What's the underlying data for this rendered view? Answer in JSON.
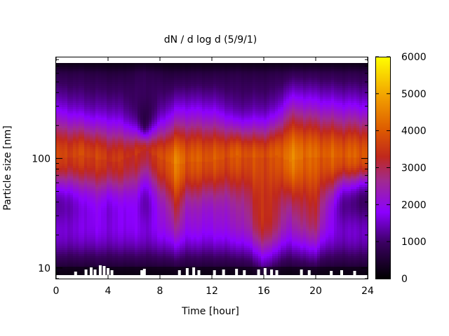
{
  "chart_data": {
    "type": "heatmap",
    "title": "dN / d log d (5/9/1)",
    "xlabel": "Time [hour]",
    "ylabel": "Particle size [nm]",
    "xlim": [
      0,
      24
    ],
    "xticks": [
      "0",
      "4",
      "8",
      "12",
      "16",
      "20",
      "24"
    ],
    "ylim": [
      8,
      850
    ],
    "y_scale": "log",
    "ymajor_ticks": [
      "10",
      "100"
    ],
    "color_scale": {
      "min": 0,
      "max": 6000,
      "ticks": [
        "0",
        "1000",
        "2000",
        "3000",
        "4000",
        "5000",
        "6000"
      ],
      "palette": "black-purple-red-orange-yellow"
    },
    "mode_profile": {
      "hours": [
        0,
        2,
        3,
        4,
        5,
        6,
        6.8,
        8,
        9.3,
        10,
        12,
        13,
        14,
        15,
        16,
        17,
        18,
        19,
        20,
        22,
        24
      ],
      "peak_diameter_nm": [
        100,
        105,
        100,
        95,
        95,
        105,
        120,
        100,
        88,
        92,
        95,
        100,
        105,
        100,
        100,
        105,
        95,
        100,
        100,
        100,
        100
      ],
      "peak_value": [
        3500,
        3600,
        3550,
        3400,
        3350,
        3300,
        3200,
        3550,
        4350,
        3900,
        3800,
        3750,
        3850,
        3750,
        3750,
        3800,
        4350,
        4200,
        4000,
        3900,
        3900
      ],
      "lower_edge_nm": [
        60,
        55,
        50,
        52,
        50,
        50,
        62,
        47,
        38,
        44,
        46,
        45,
        44,
        38,
        26,
        36,
        44,
        38,
        36,
        60,
        66
      ],
      "upper_edge_nm": [
        210,
        200,
        190,
        185,
        180,
        175,
        160,
        180,
        190,
        200,
        200,
        195,
        185,
        185,
        185,
        200,
        230,
        235,
        230,
        220,
        215
      ]
    },
    "grid": false,
    "legend": "colorbar-right"
  }
}
